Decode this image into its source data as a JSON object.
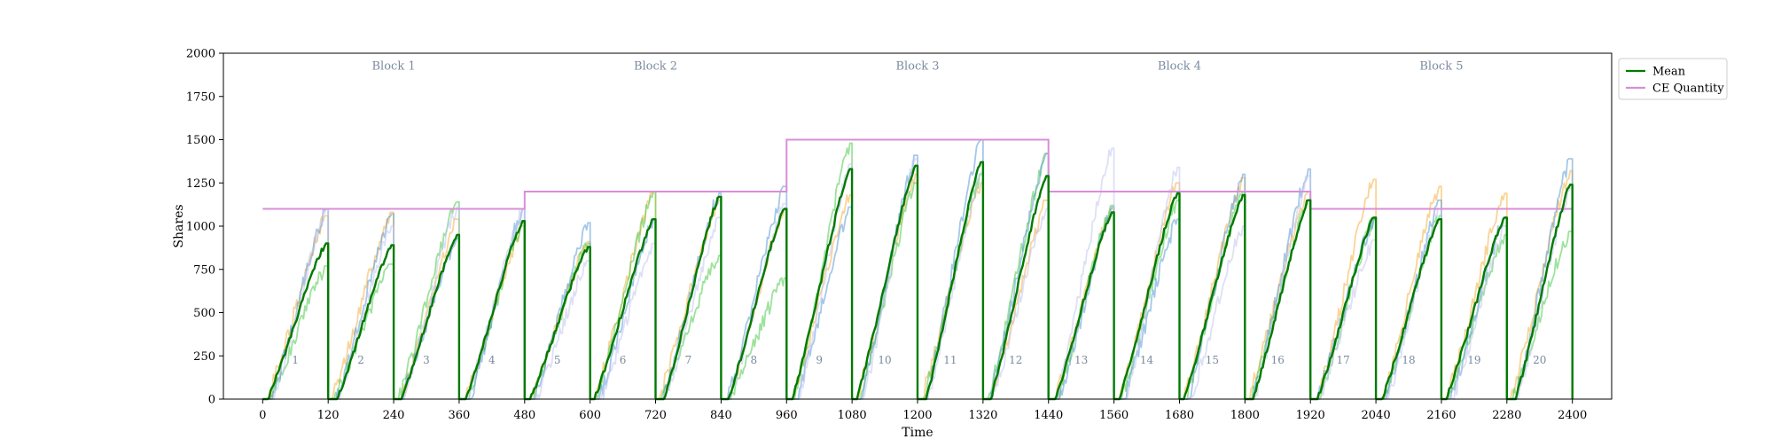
{
  "chart_data": {
    "type": "line",
    "xlabel": "Time",
    "ylabel": "Shares",
    "xlim": [
      -72,
      2472
    ],
    "ylim": [
      0,
      2000
    ],
    "xticks": [
      0,
      120,
      240,
      360,
      480,
      600,
      720,
      840,
      960,
      1080,
      1200,
      1320,
      1440,
      1560,
      1680,
      1800,
      1920,
      2040,
      2160,
      2280,
      2400
    ],
    "yticks": [
      0,
      250,
      500,
      750,
      1000,
      1250,
      1500,
      1750,
      2000
    ],
    "grid": false,
    "legend_position": "outside-top-right",
    "legend": [
      {
        "label": "Mean",
        "color": "#007a00"
      },
      {
        "label": "CE Quantity",
        "color": "#d98ed8"
      }
    ],
    "blocks": [
      {
        "label": "Block 1",
        "start": 0,
        "end": 480
      },
      {
        "label": "Block 2",
        "start": 480,
        "end": 960
      },
      {
        "label": "Block 3",
        "start": 960,
        "end": 1440
      },
      {
        "label": "Block 4",
        "start": 1440,
        "end": 1920
      },
      {
        "label": "Block 5",
        "start": 1920,
        "end": 2400
      }
    ],
    "block_label_y": 1930,
    "period_label_y": 230,
    "periods": [
      "1",
      "2",
      "3",
      "4",
      "5",
      "6",
      "7",
      "8",
      "9",
      "10",
      "11",
      "12",
      "13",
      "14",
      "15",
      "16",
      "17",
      "18",
      "19",
      "20"
    ],
    "period_length": 120,
    "ce_quantity": [
      {
        "start": 0,
        "end": 480,
        "value": 1100
      },
      {
        "start": 480,
        "end": 960,
        "value": 1200
      },
      {
        "start": 960,
        "end": 1440,
        "value": 1500
      },
      {
        "start": 1440,
        "end": 1920,
        "value": 1200
      },
      {
        "start": 1920,
        "end": 2400,
        "value": 1100
      }
    ],
    "mean_period_peaks": [
      900,
      890,
      950,
      1030,
      880,
      1040,
      1170,
      1100,
      1330,
      1350,
      1370,
      1290,
      1080,
      1190,
      1180,
      1150,
      1050,
      1040,
      1050,
      1240
    ],
    "participant_series": [
      {
        "color": "#f5b041",
        "period_peaks": [
          1060,
          1080,
          1040,
          1000,
          910,
          1200,
          1150,
          1100,
          1180,
          1300,
          1250,
          1150,
          1100,
          1250,
          1280,
          1200,
          1270,
          1230,
          1190,
          1320
        ]
      },
      {
        "color": "#4cca4c",
        "period_peaks": [
          770,
          780,
          1140,
          1020,
          900,
          1200,
          830,
          700,
          1480,
          1250,
          1300,
          1420,
          1120,
          1150,
          1200,
          1150,
          1040,
          1060,
          950,
          970
        ]
      },
      {
        "color": "#5b9bd5",
        "period_peaks": [
          1100,
          1070,
          930,
          1100,
          1020,
          1040,
          1190,
          1230,
          1110,
          1410,
          1500,
          1420,
          1110,
          1040,
          1300,
          1330,
          1040,
          1150,
          1050,
          1390
        ]
      },
      {
        "color": "#c3c7ee",
        "period_peaks": [
          1100,
          1000,
          1110,
          1100,
          800,
          900,
          1050,
          1130,
          1360,
          1390,
          1310,
          1100,
          1450,
          1340,
          1000,
          1290,
          920,
          1100,
          1000,
          1220
        ]
      }
    ]
  }
}
